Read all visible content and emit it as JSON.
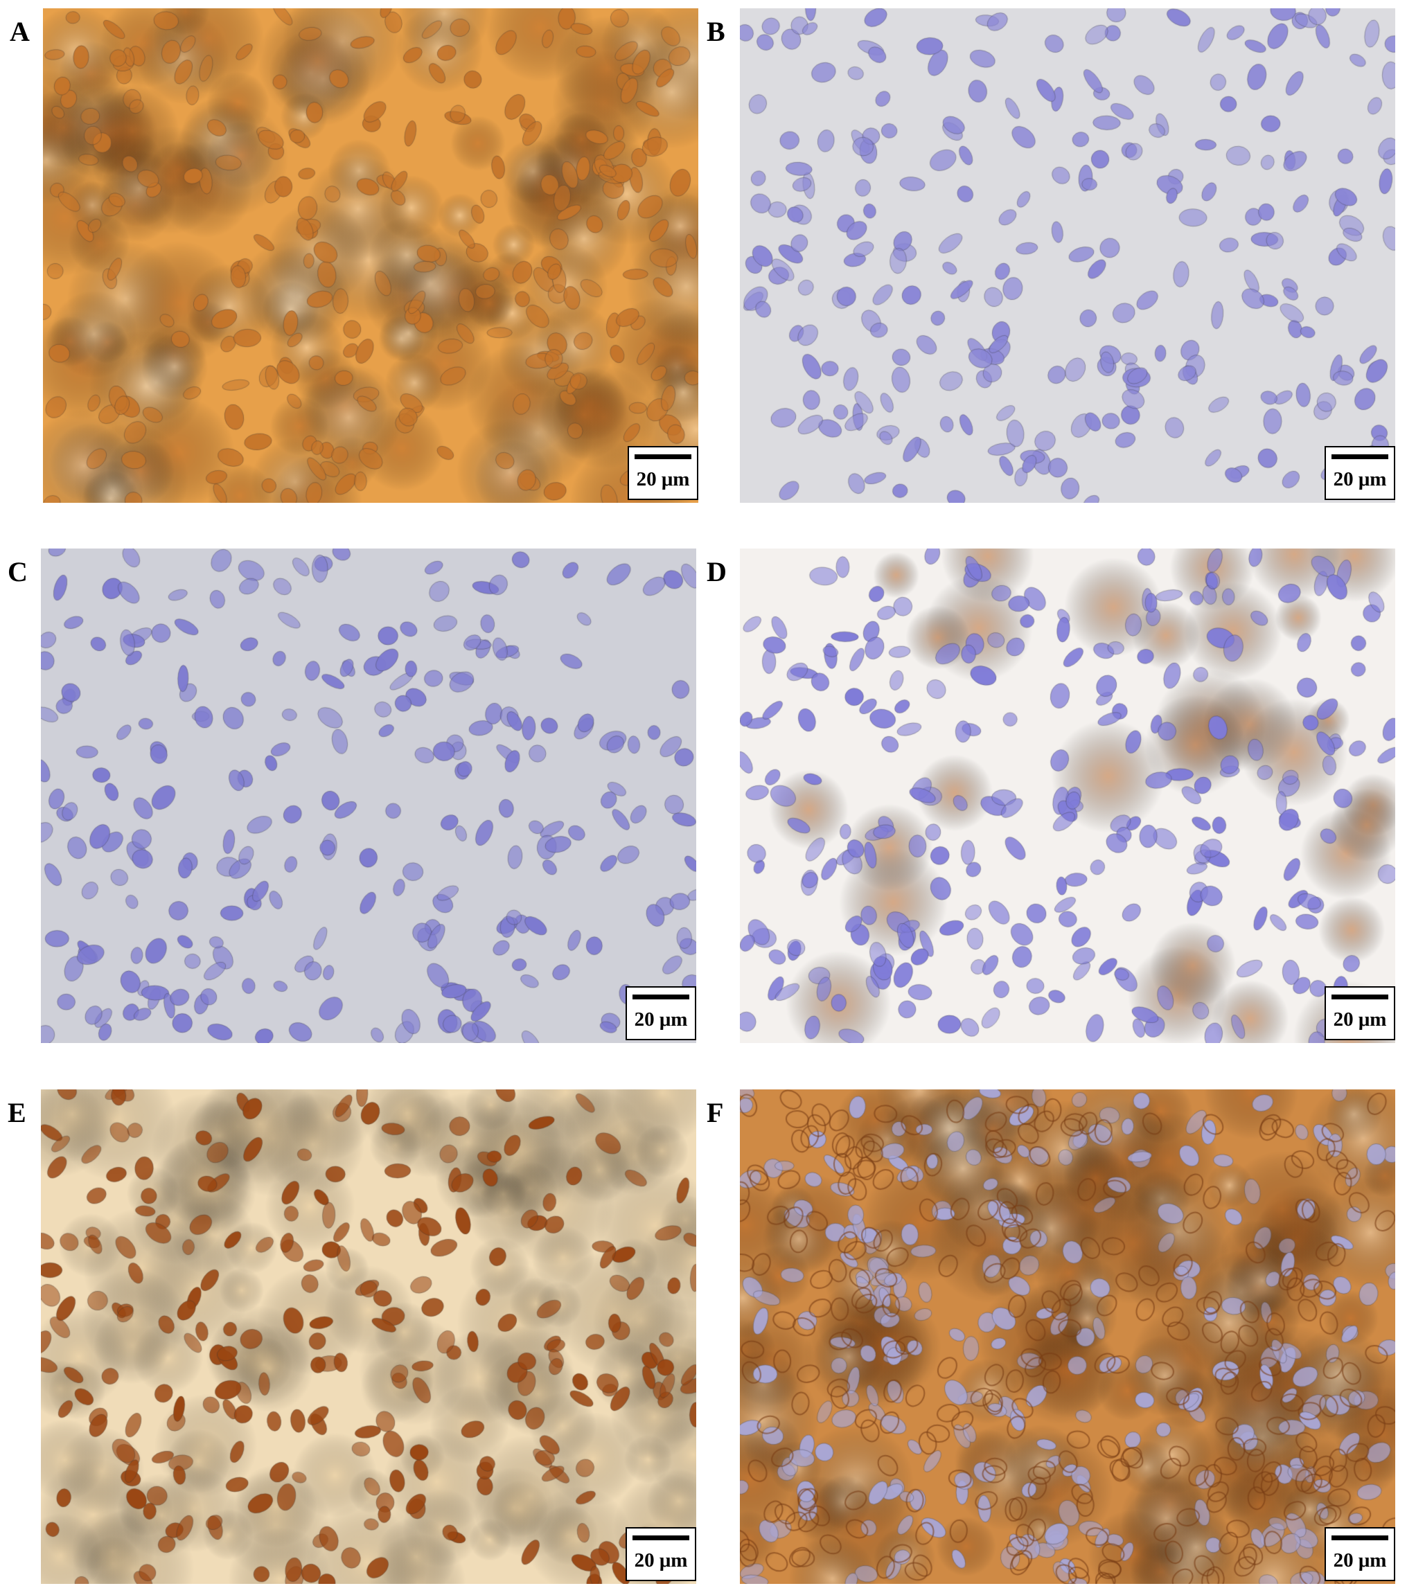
{
  "panels": [
    {
      "label": "A",
      "scale_bar": "20 μm",
      "stain": "diffuse-brown",
      "background": "#e7a04a",
      "nucleus": "#c4742a"
    },
    {
      "label": "B",
      "scale_bar": "20 μm",
      "stain": "hematoxylin-only",
      "background": "#dcdce0",
      "nucleus": "#8a86d6"
    },
    {
      "label": "C",
      "scale_bar": "20 μm",
      "stain": "hematoxylin-only",
      "background": "#cfd0d8",
      "nucleus": "#7d7ad0"
    },
    {
      "label": "D",
      "scale_bar": "20 μm",
      "stain": "focal-cytoplasmic-brown",
      "background": "#f4f1ee",
      "nucleus": "#7f7bd8"
    },
    {
      "label": "E",
      "scale_bar": "20 μm",
      "stain": "nuclear-brown",
      "background": "#f0dcb8",
      "nucleus": "#9a4612"
    },
    {
      "label": "F",
      "scale_bar": "20 μm",
      "stain": "membranous-brown",
      "background": "#cf8a45",
      "nucleus": "#a9a6d4"
    }
  ]
}
